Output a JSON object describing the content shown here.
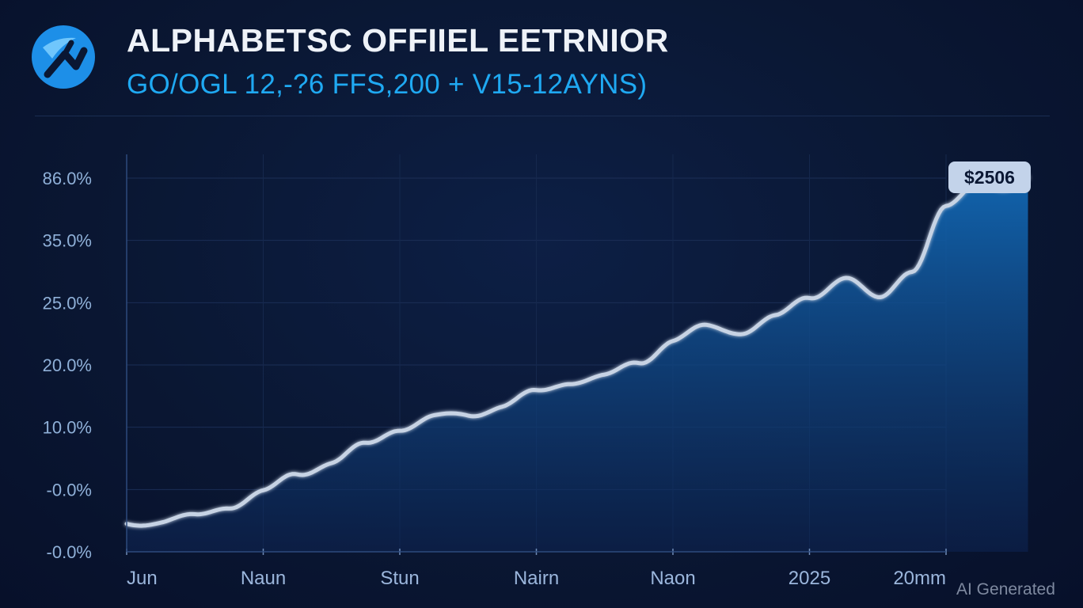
{
  "header": {
    "title": "ALPHABETSC OFFIIEL EETRNIOR",
    "subtitle": "GO/OGL 12,-?6 FFS,200 + V15-12AYNS)",
    "logo_icon": "alphabet-logo-icon"
  },
  "watermark": "AI Generated",
  "colors": {
    "background": "#0a1733",
    "line": "#c7d3e4",
    "area_top": "#1268b4",
    "area_bottom": "#0d2350",
    "subtitle": "#1fa9f2",
    "badge_bg": "#c3d3ea",
    "badge_text": "#0a1733"
  },
  "chart_data": {
    "type": "area",
    "title": "ALPHABETSC OFFIIEL EETRNIOR",
    "subtitle": "GO/OGL 12,-?6 FFS,200 + V15-12AYNS)",
    "xlabel": "",
    "ylabel": "",
    "y_tick_labels": [
      "86.0%",
      "35.0%",
      "25.0%",
      "20.0%",
      "10.0%",
      "-0.0%",
      "-0.0%"
    ],
    "x_tick_labels": [
      "Jun",
      "Naun",
      "Stun",
      "Nairn",
      "Naon",
      "2025",
      "20mm"
    ],
    "ylim": [
      0,
      6
    ],
    "grid": true,
    "legend": "none",
    "end_label": "$2506",
    "series": [
      {
        "x": [
          0,
          0.25,
          0.5,
          0.75,
          1.0,
          1.25,
          1.5,
          1.75,
          2.0,
          2.25,
          2.5,
          2.75,
          3.0,
          3.25,
          3.5,
          3.75,
          4.0,
          4.25,
          4.5,
          4.75,
          5.0,
          5.25,
          5.5,
          5.75,
          6.0,
          6.25,
          6.45,
          6.6
        ],
        "values": [
          0.45,
          0.5,
          0.55,
          0.75,
          0.95,
          1.25,
          1.45,
          1.7,
          2.0,
          2.15,
          2.2,
          2.35,
          2.55,
          2.75,
          2.8,
          3.05,
          3.4,
          3.6,
          3.55,
          3.75,
          4.1,
          4.4,
          4.05,
          4.55,
          5.5,
          5.95,
          5.85,
          6.0
        ]
      }
    ]
  }
}
